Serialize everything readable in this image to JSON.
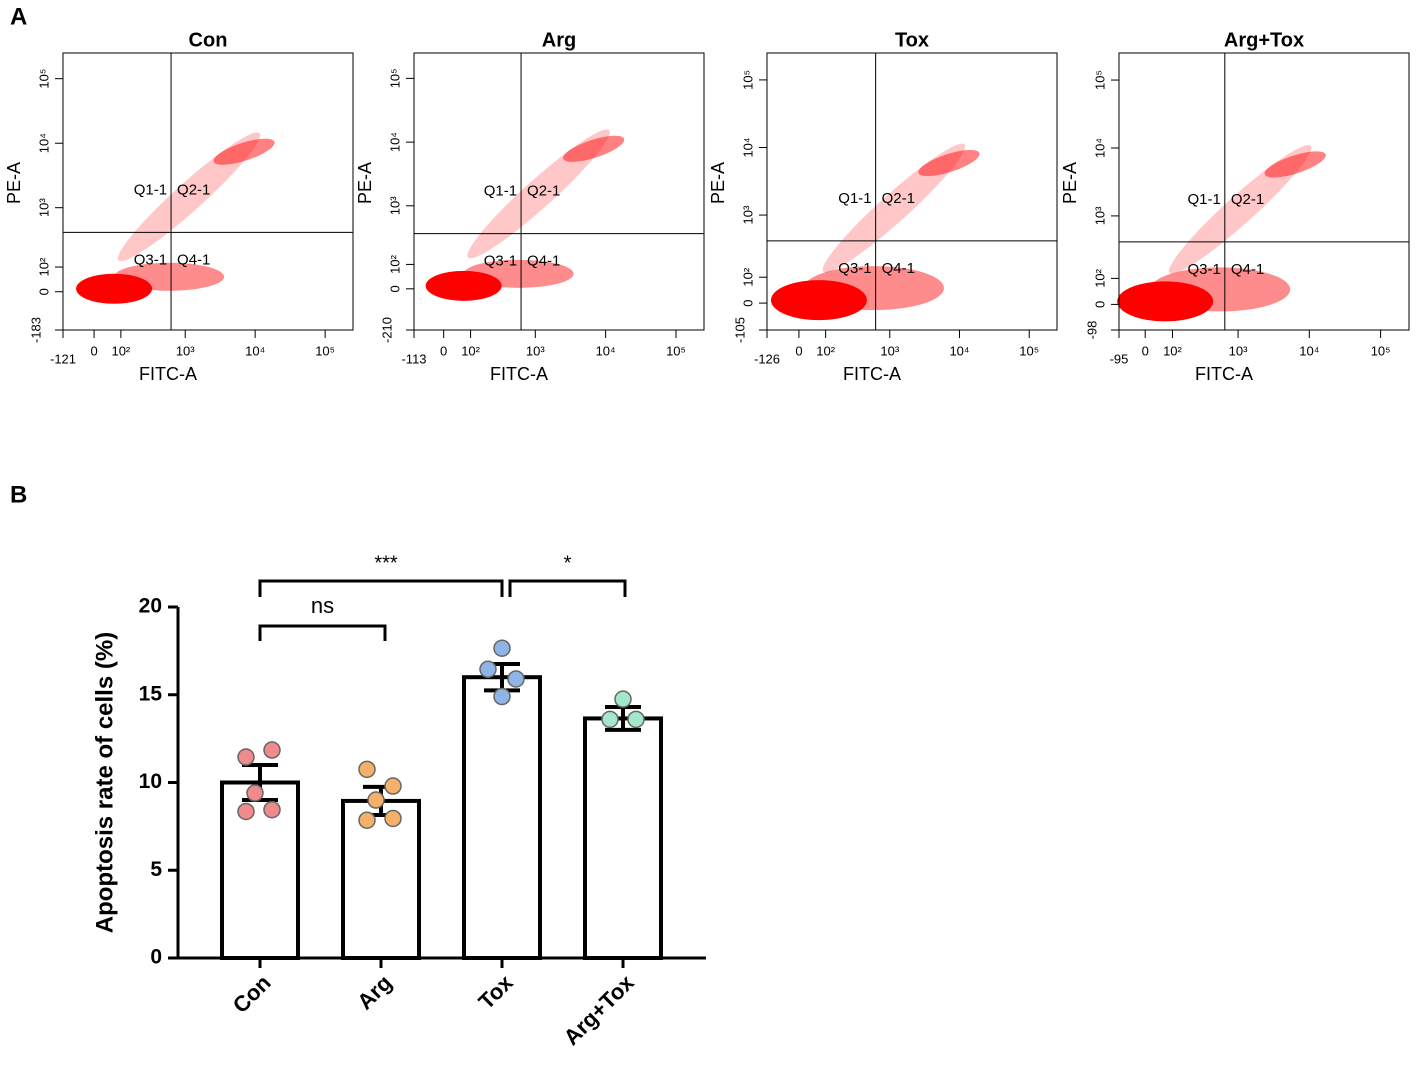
{
  "panel_labels": [
    "A",
    "B"
  ],
  "chart_data": [
    {
      "type": "flow",
      "title": "Con",
      "xlabel": "FITC-A",
      "ylabel": "PE-A",
      "xlim": [
        -121,
        250000
      ],
      "ylim": [
        -183,
        250000
      ],
      "xticks": [
        -121,
        0,
        {
          "value": 100,
          "label": "10²"
        },
        {
          "value": 1000,
          "label": "10³"
        },
        {
          "value": 10000,
          "label": "10⁴"
        },
        {
          "value": 100000,
          "label": "10⁵"
        }
      ],
      "yticks": [
        -183,
        0,
        {
          "value": 100,
          "label": "10²"
        },
        {
          "value": 1000,
          "label": "10³"
        },
        {
          "value": 10000,
          "label": "10⁴"
        },
        {
          "value": 100000,
          "label": "10⁵"
        }
      ],
      "gate_x": 625,
      "gate_y": 410,
      "quadrants": [
        "Q1-1",
        "Q2-1",
        "Q3-1",
        "Q4-1"
      ]
    },
    {
      "type": "flow",
      "title": "Arg",
      "xlabel": "FITC-A",
      "ylabel": "PE-A",
      "xlim": [
        -113,
        250000
      ],
      "ylim": [
        -210,
        250000
      ],
      "xticks": [
        -113,
        0,
        {
          "value": 100,
          "label": "10²"
        },
        {
          "value": 1000,
          "label": "10³"
        },
        {
          "value": 10000,
          "label": "10⁴"
        },
        {
          "value": 100000,
          "label": "10⁵"
        }
      ],
      "yticks": [
        -210,
        0,
        {
          "value": 100,
          "label": "10²"
        },
        {
          "value": 1000,
          "label": "10³"
        },
        {
          "value": 10000,
          "label": "10⁴"
        },
        {
          "value": 100000,
          "label": "10⁵"
        }
      ],
      "gate_x": 625,
      "gate_y": 360,
      "quadrants": [
        "Q1-1",
        "Q2-1",
        "Q3-1",
        "Q4-1"
      ]
    },
    {
      "type": "flow",
      "title": "Tox",
      "xlabel": "FITC-A",
      "ylabel": "PE-A",
      "xlim": [
        -126,
        250000
      ],
      "ylim": [
        -105,
        250000
      ],
      "xticks": [
        -126,
        0,
        {
          "value": 100,
          "label": "10²"
        },
        {
          "value": 1000,
          "label": "10³"
        },
        {
          "value": 10000,
          "label": "10⁴"
        },
        {
          "value": 100000,
          "label": "10⁵"
        }
      ],
      "yticks": [
        -105,
        0,
        {
          "value": 100,
          "label": "10²"
        },
        {
          "value": 1000,
          "label": "10³"
        },
        {
          "value": 10000,
          "label": "10⁴"
        },
        {
          "value": 100000,
          "label": "10⁵"
        }
      ],
      "gate_x": 625,
      "gate_y": 410,
      "quadrants": [
        "Q1-1",
        "Q2-1",
        "Q3-1",
        "Q4-1"
      ]
    },
    {
      "type": "flow",
      "title": "Arg+Tox",
      "xlabel": "FITC-A",
      "ylabel": "PE-A",
      "xlim": [
        -95,
        250000
      ],
      "ylim": [
        -98,
        250000
      ],
      "xticks": [
        -95,
        0,
        {
          "value": 100,
          "label": "10²"
        },
        {
          "value": 1000,
          "label": "10³"
        },
        {
          "value": 10000,
          "label": "10⁴"
        },
        {
          "value": 100000,
          "label": "10⁵"
        }
      ],
      "yticks": [
        -98,
        0,
        {
          "value": 100,
          "label": "10²"
        },
        {
          "value": 1000,
          "label": "10³"
        },
        {
          "value": 10000,
          "label": "10⁴"
        },
        {
          "value": 100000,
          "label": "10⁵"
        }
      ],
      "gate_x": 650,
      "gate_y": 410,
      "quadrants": [
        "Q1-1",
        "Q2-1",
        "Q3-1",
        "Q4-1"
      ]
    },
    {
      "type": "bar",
      "ylabel": "Apoptosis rate of cells (%)",
      "categories": [
        "Con",
        "Arg",
        "Tox",
        "Arg+Tox"
      ],
      "values": [
        10.0,
        8.95,
        16.0,
        13.65
      ],
      "errors": [
        1.0,
        0.8,
        0.75,
        0.65
      ],
      "points": [
        [
          11.45,
          11.85,
          9.4,
          8.35,
          8.45
        ],
        [
          10.75,
          9.8,
          9.0,
          7.85,
          7.95
        ],
        [
          17.65,
          16.45,
          15.9,
          14.9
        ],
        [
          14.75,
          13.6,
          13.6
        ]
      ],
      "point_colors": [
        "#f08a8c",
        "#f5b169",
        "#8fb5e6",
        "#a3e8cb"
      ],
      "ylim": [
        0,
        20
      ],
      "yticks": [
        0,
        5,
        10,
        15,
        20
      ],
      "annotations": [
        {
          "text": "ns",
          "from": 0,
          "to": 1
        },
        {
          "text": "***",
          "from": 0,
          "to": 2
        },
        {
          "text": "*",
          "from": 2,
          "to": 3
        }
      ]
    }
  ]
}
